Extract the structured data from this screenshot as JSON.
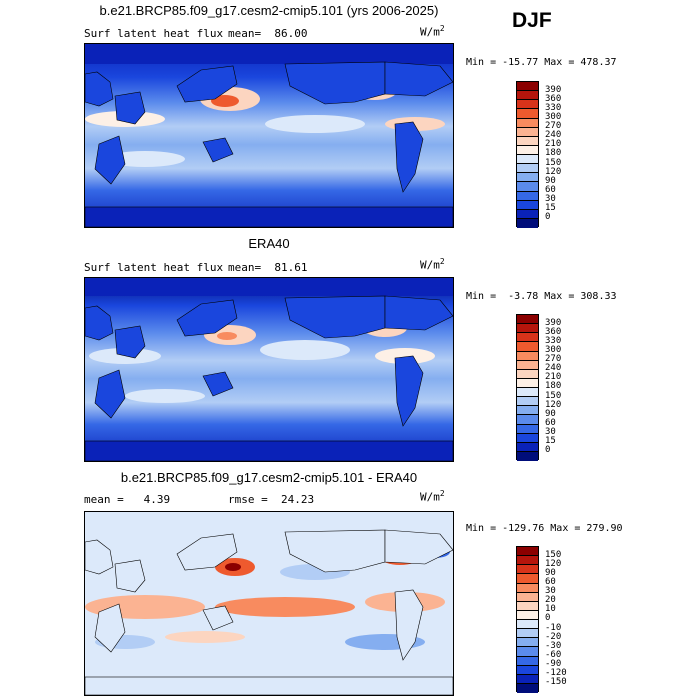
{
  "season": "DJF",
  "panels": [
    {
      "id": "model",
      "title": "b.e21.BRCP85.f09_g17.cesm2-cmip5.101 (yrs 2006-2025)",
      "left_text": "Surf latent heat flux",
      "stat_text": "mean=  86.00",
      "unit_base": "W/m",
      "unit_exp": "2",
      "minmax": "Min = -15.77 Max = 478.37",
      "levels": [
        "390",
        "360",
        "330",
        "300",
        "270",
        "240",
        "210",
        "180",
        "150",
        "120",
        "90",
        "60",
        "30",
        "15",
        "0"
      ],
      "colors": [
        "#8b0000",
        "#b5150c",
        "#d8331a",
        "#ee5a2e",
        "#f88b5f",
        "#fbb392",
        "#fcd5c0",
        "#fdf0e6",
        "#dce9fa",
        "#b2cdf5",
        "#85aef0",
        "#5b8bec",
        "#3568e6",
        "#1a46dd",
        "#0a22b8",
        "#000d7a"
      ]
    },
    {
      "id": "obs",
      "title": "ERA40",
      "left_text": "Surf latent heat flux",
      "stat_text": "mean=  81.61",
      "unit_base": "W/m",
      "unit_exp": "2",
      "minmax": "Min =  -3.78 Max = 308.33",
      "levels": [
        "390",
        "360",
        "330",
        "300",
        "270",
        "240",
        "210",
        "180",
        "150",
        "120",
        "90",
        "60",
        "30",
        "15",
        "0"
      ],
      "colors": [
        "#8b0000",
        "#b5150c",
        "#d8331a",
        "#ee5a2e",
        "#f88b5f",
        "#fbb392",
        "#fcd5c0",
        "#fdf0e6",
        "#dce9fa",
        "#b2cdf5",
        "#85aef0",
        "#5b8bec",
        "#3568e6",
        "#1a46dd",
        "#0a22b8",
        "#000d7a"
      ]
    },
    {
      "id": "diff",
      "title": "b.e21.BRCP85.f09_g17.cesm2-cmip5.101 - ERA40",
      "left_text": "mean =   4.39",
      "stat_text": "rmse =  24.23",
      "unit_base": "W/m",
      "unit_exp": "2",
      "minmax": "Min = -129.76 Max = 279.90",
      "levels": [
        "150",
        "120",
        "90",
        "60",
        "30",
        "20",
        "10",
        "0",
        "-10",
        "-20",
        "-30",
        "-60",
        "-90",
        "-120",
        "-150"
      ],
      "colors": [
        "#8b0000",
        "#b5150c",
        "#d8331a",
        "#ee5a2e",
        "#f88b5f",
        "#fbb392",
        "#fcd5c0",
        "#fdf0e6",
        "#dce9fa",
        "#b2cdf5",
        "#85aef0",
        "#5b8bec",
        "#3568e6",
        "#1a46dd",
        "#0a22b8",
        "#000d7a"
      ]
    }
  ]
}
